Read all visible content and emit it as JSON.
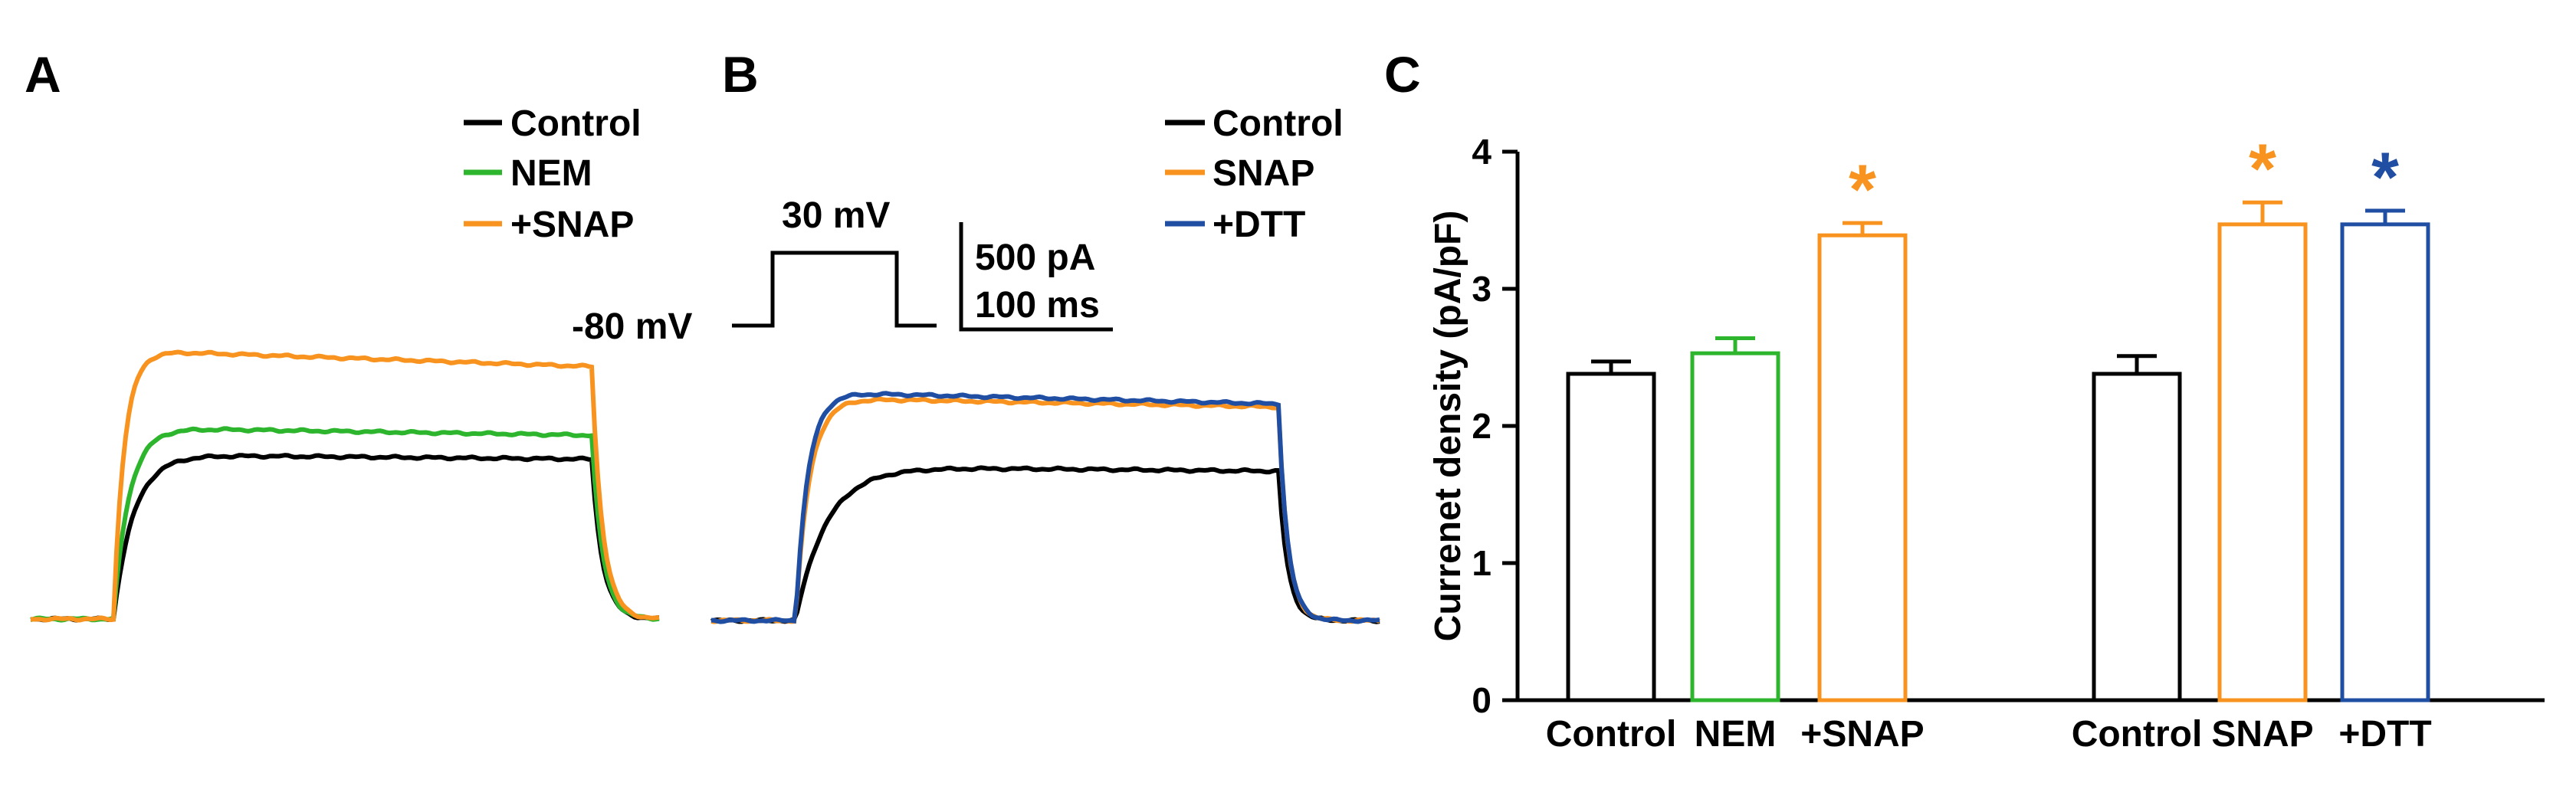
{
  "panels": {
    "a": "A",
    "b": "B",
    "c": "C"
  },
  "colors": {
    "control": "#000000",
    "nem": "#2db52d",
    "snap": "#f7931e",
    "dtt": "#1f4ea3"
  },
  "panel_a": {
    "legend": [
      "Control",
      "NEM",
      "+SNAP"
    ],
    "traces": [
      {
        "name": "Control",
        "color": "#000000",
        "steady": 0.55,
        "end": 0.535
      },
      {
        "name": "NEM",
        "color": "#2db52d",
        "steady": 0.64,
        "end": 0.615
      },
      {
        "name": "+SNAP",
        "color": "#f7931e",
        "steady": 0.9,
        "end": 0.845
      }
    ]
  },
  "panel_b": {
    "legend": [
      "Control",
      "SNAP",
      "+DTT"
    ],
    "protocol": {
      "step_label": "30 mV",
      "hold_label": "-80 mV"
    },
    "scale_bar": {
      "current": "500 pA",
      "time": "100 ms"
    },
    "traces": [
      {
        "name": "Control",
        "color": "#000000",
        "steady": 0.515,
        "end": 0.5
      },
      {
        "name": "SNAP",
        "color": "#f7931e",
        "steady": 0.745,
        "end": 0.715
      },
      {
        "name": "+DTT",
        "color": "#1f4ea3",
        "steady": 0.765,
        "end": 0.725
      }
    ]
  },
  "chart_data": {
    "type": "bar",
    "categories": [
      "Control",
      "NEM",
      "+SNAP",
      "Control",
      "SNAP",
      "+DTT"
    ],
    "values": [
      2.38,
      2.53,
      3.39,
      2.38,
      3.47,
      3.47
    ],
    "errors": [
      0.09,
      0.11,
      0.09,
      0.13,
      0.16,
      0.1
    ],
    "colors": [
      "#000000",
      "#2db52d",
      "#f7931e",
      "#000000",
      "#f7931e",
      "#1f4ea3"
    ],
    "significance": [
      "",
      "",
      "*",
      "",
      "*",
      "*"
    ],
    "ylabel": "Currenet density (pA/pF)",
    "ylim": [
      0,
      4
    ],
    "yticks": [
      "0",
      "1",
      "2",
      "3",
      "4"
    ]
  }
}
